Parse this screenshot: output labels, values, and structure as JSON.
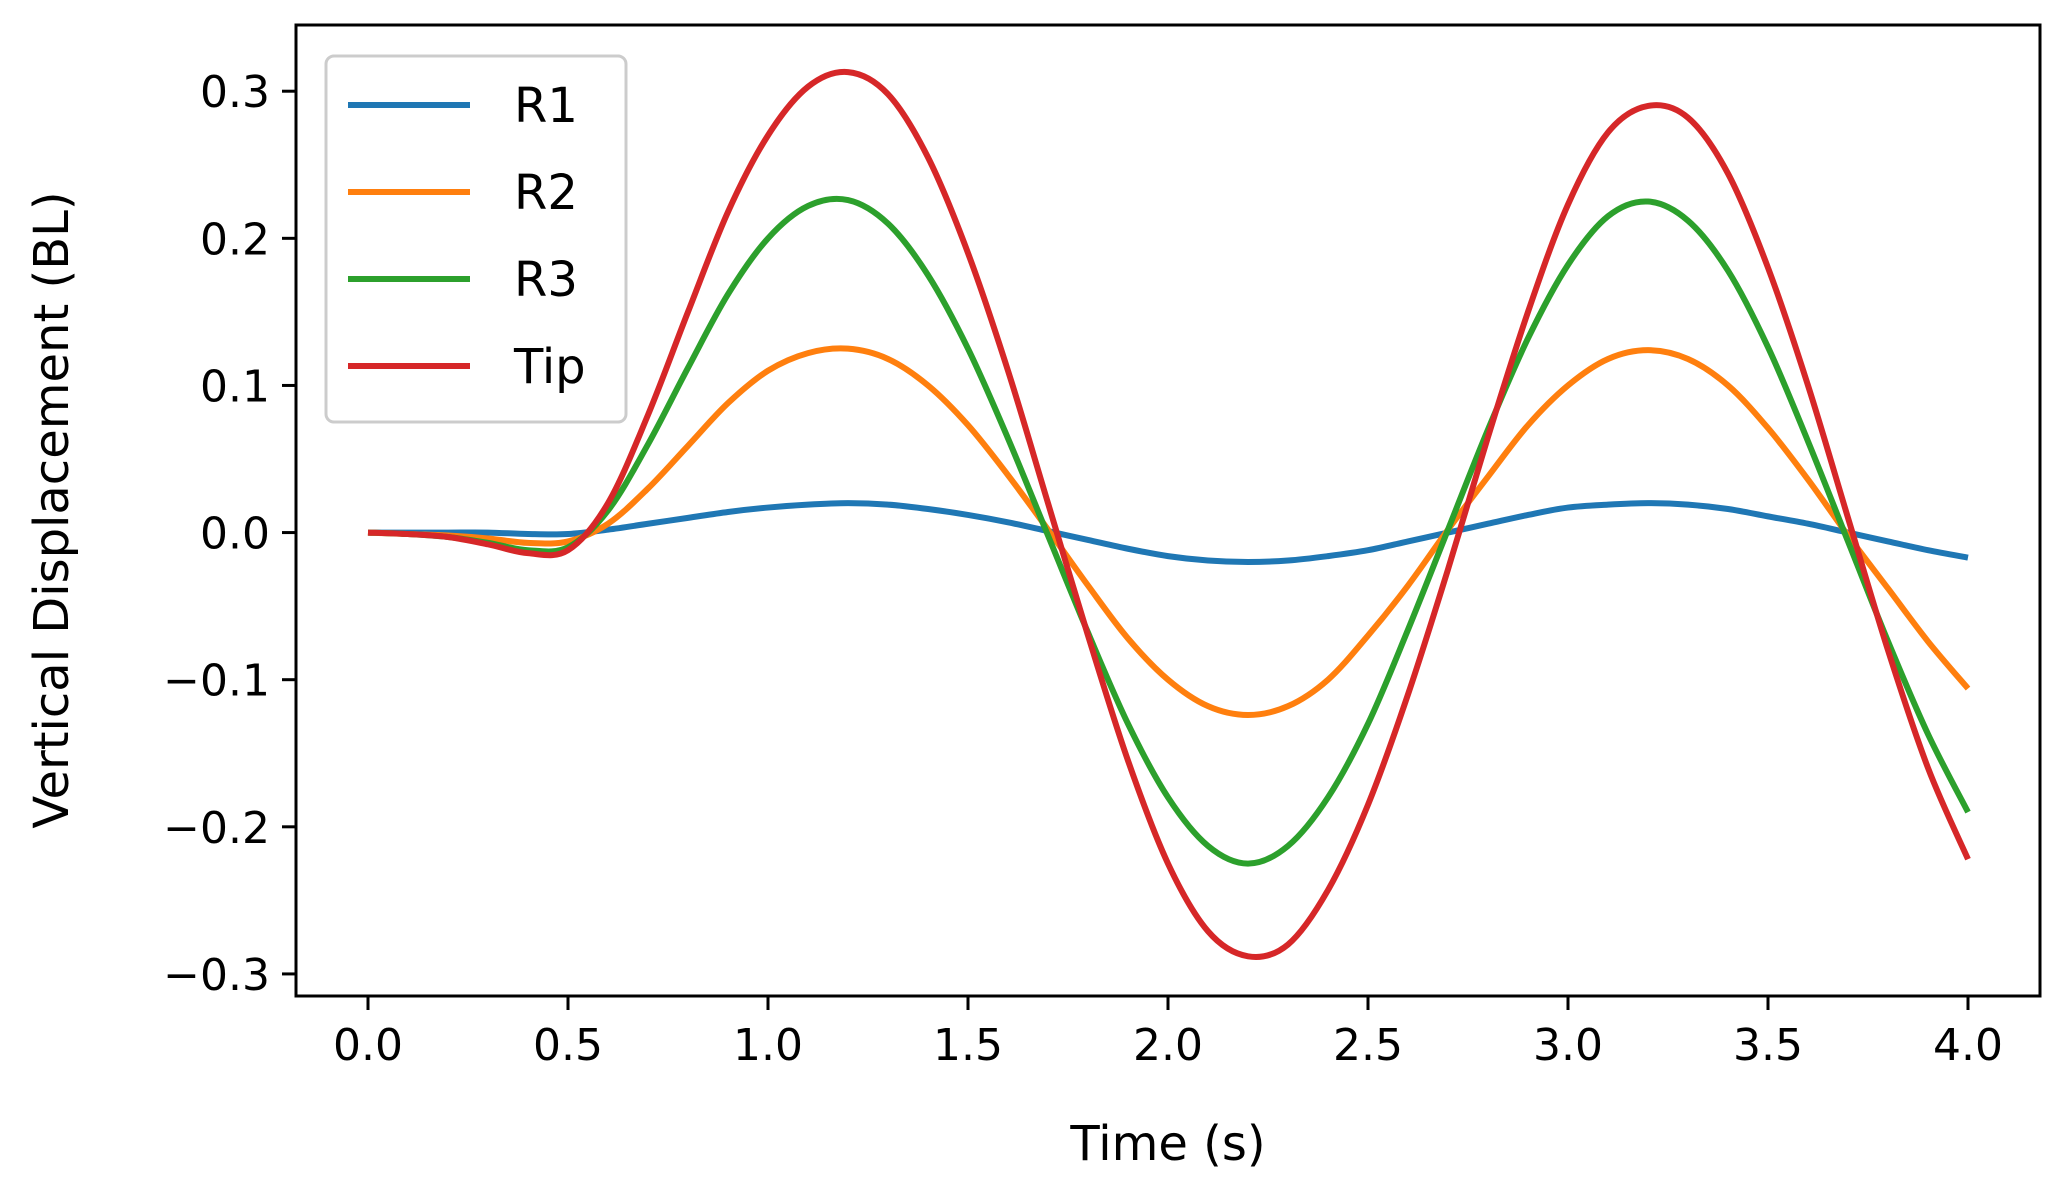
{
  "chart_data": {
    "type": "line",
    "title": "",
    "xlabel": "Time (s)",
    "ylabel": "Vertical Displacement (BL)",
    "xlim": [
      -0.18,
      4.18
    ],
    "ylim": [
      -0.315,
      0.345
    ],
    "xticks": [
      0.0,
      0.5,
      1.0,
      1.5,
      2.0,
      2.5,
      3.0,
      3.5,
      4.0
    ],
    "xtick_labels": [
      "0.0",
      "0.5",
      "1.0",
      "1.5",
      "2.0",
      "2.5",
      "3.0",
      "3.5",
      "4.0"
    ],
    "yticks": [
      -0.3,
      -0.2,
      -0.1,
      0.0,
      0.1,
      0.2,
      0.3
    ],
    "ytick_labels": [
      "−0.3",
      "−0.2",
      "−0.1",
      "0.0",
      "0.1",
      "0.2",
      "0.3"
    ],
    "grid": false,
    "legend_position": "top-left",
    "series": [
      {
        "name": "R1",
        "color": "#1f77b4",
        "x": [
          0.0,
          0.1,
          0.2,
          0.3,
          0.4,
          0.5,
          0.6,
          0.7,
          0.8,
          0.9,
          1.0,
          1.1,
          1.2,
          1.3,
          1.4,
          1.5,
          1.6,
          1.7,
          1.8,
          1.9,
          2.0,
          2.1,
          2.2,
          2.3,
          2.4,
          2.5,
          2.6,
          2.7,
          2.8,
          2.9,
          3.0,
          3.1,
          3.2,
          3.3,
          3.4,
          3.5,
          3.6,
          3.7,
          3.8,
          3.9,
          4.0
        ],
        "y": [
          0.0,
          0.0,
          0.0,
          0.0,
          -0.001,
          -0.001,
          0.002,
          0.006,
          0.01,
          0.014,
          0.017,
          0.019,
          0.02,
          0.019,
          0.016,
          0.012,
          0.007,
          0.001,
          -0.005,
          -0.011,
          -0.016,
          -0.019,
          -0.02,
          -0.019,
          -0.016,
          -0.012,
          -0.006,
          0.0,
          0.006,
          0.012,
          0.017,
          0.019,
          0.02,
          0.019,
          0.016,
          0.011,
          0.006,
          0.0,
          -0.006,
          -0.012,
          -0.017
        ]
      },
      {
        "name": "R2",
        "color": "#ff7f0e",
        "x": [
          0.0,
          0.1,
          0.2,
          0.3,
          0.4,
          0.5,
          0.6,
          0.7,
          0.8,
          0.9,
          1.0,
          1.1,
          1.2,
          1.3,
          1.4,
          1.5,
          1.6,
          1.7,
          1.8,
          1.9,
          2.0,
          2.1,
          2.2,
          2.3,
          2.4,
          2.5,
          2.6,
          2.7,
          2.8,
          2.9,
          3.0,
          3.1,
          3.2,
          3.3,
          3.4,
          3.5,
          3.6,
          3.7,
          3.8,
          3.9,
          4.0
        ],
        "y": [
          0.0,
          -0.001,
          -0.002,
          -0.004,
          -0.007,
          -0.006,
          0.006,
          0.03,
          0.059,
          0.088,
          0.11,
          0.122,
          0.125,
          0.118,
          0.1,
          0.073,
          0.039,
          0.002,
          -0.036,
          -0.072,
          -0.1,
          -0.118,
          -0.124,
          -0.118,
          -0.1,
          -0.07,
          -0.036,
          0.002,
          0.038,
          0.073,
          0.1,
          0.118,
          0.124,
          0.118,
          0.1,
          0.071,
          0.036,
          -0.002,
          -0.038,
          -0.074,
          -0.106
        ]
      },
      {
        "name": "R3",
        "color": "#2ca02c",
        "x": [
          0.0,
          0.1,
          0.2,
          0.3,
          0.4,
          0.5,
          0.6,
          0.7,
          0.8,
          0.9,
          1.0,
          1.1,
          1.2,
          1.3,
          1.4,
          1.5,
          1.6,
          1.7,
          1.8,
          1.9,
          2.0,
          2.1,
          2.2,
          2.3,
          2.4,
          2.5,
          2.6,
          2.7,
          2.8,
          2.9,
          3.0,
          3.1,
          3.2,
          3.3,
          3.4,
          3.5,
          3.6,
          3.7,
          3.8,
          3.9,
          4.0
        ],
        "y": [
          0.0,
          -0.001,
          -0.003,
          -0.007,
          -0.012,
          -0.01,
          0.015,
          0.06,
          0.112,
          0.162,
          0.2,
          0.222,
          0.226,
          0.21,
          0.175,
          0.125,
          0.064,
          -0.002,
          -0.068,
          -0.13,
          -0.18,
          -0.213,
          -0.225,
          -0.213,
          -0.18,
          -0.13,
          -0.066,
          0.002,
          0.07,
          0.132,
          0.182,
          0.215,
          0.225,
          0.212,
          0.178,
          0.126,
          0.062,
          -0.006,
          -0.074,
          -0.137,
          -0.19
        ]
      },
      {
        "name": "Tip",
        "color": "#d62728",
        "x": [
          0.0,
          0.1,
          0.2,
          0.3,
          0.4,
          0.5,
          0.6,
          0.7,
          0.8,
          0.9,
          1.0,
          1.1,
          1.2,
          1.3,
          1.4,
          1.5,
          1.6,
          1.7,
          1.8,
          1.9,
          2.0,
          2.1,
          2.2,
          2.3,
          2.4,
          2.5,
          2.6,
          2.7,
          2.8,
          2.9,
          3.0,
          3.1,
          3.2,
          3.3,
          3.4,
          3.5,
          3.6,
          3.7,
          3.8,
          3.9,
          4.0
        ],
        "y": [
          0.0,
          -0.001,
          -0.003,
          -0.008,
          -0.014,
          -0.012,
          0.02,
          0.08,
          0.15,
          0.218,
          0.27,
          0.303,
          0.313,
          0.298,
          0.255,
          0.19,
          0.11,
          0.02,
          -0.07,
          -0.155,
          -0.225,
          -0.271,
          -0.288,
          -0.28,
          -0.243,
          -0.185,
          -0.11,
          -0.025,
          0.065,
          0.15,
          0.223,
          0.272,
          0.29,
          0.282,
          0.244,
          0.18,
          0.1,
          0.01,
          -0.08,
          -0.16,
          -0.222
        ]
      }
    ]
  }
}
